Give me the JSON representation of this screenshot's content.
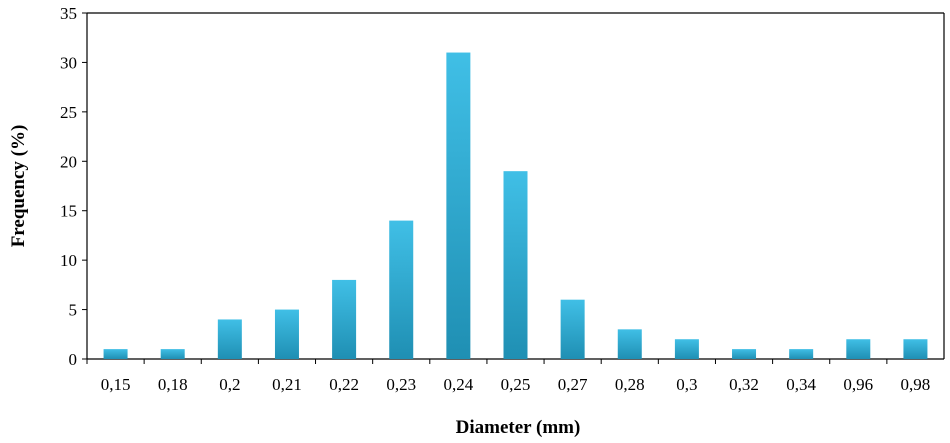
{
  "chart_data": {
    "type": "bar",
    "categories": [
      "0,15",
      "0,18",
      "0,2",
      "0,21",
      "0,22",
      "0,23",
      "0,24",
      "0,25",
      "0,27",
      "0,28",
      "0,3",
      "0,32",
      "0,34",
      "0,96",
      "0,98"
    ],
    "values": [
      1,
      1,
      4,
      5,
      8,
      14,
      31,
      19,
      6,
      3,
      2,
      1,
      1,
      2,
      2
    ],
    "xlabel": "Diameter (mm)",
    "ylabel": "Frequency (%)",
    "ylim": [
      0,
      35
    ],
    "yticks": [
      0,
      5,
      10,
      15,
      20,
      25,
      30,
      35
    ],
    "grid": false,
    "legend": "none",
    "bar_color_top": "#40bfe6",
    "bar_color_bottom": "#1f8fb3"
  }
}
